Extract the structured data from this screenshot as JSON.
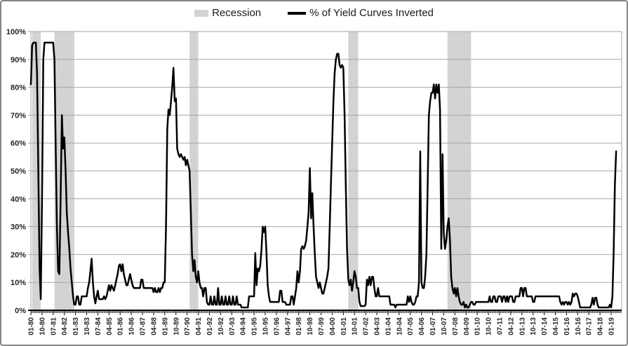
{
  "legend": {
    "recession_label": "Recession",
    "series_label": "% of Yield Curves Inverted"
  },
  "chart_data": {
    "type": "line",
    "title": "",
    "xlabel": "",
    "ylabel": "",
    "ylim": [
      0,
      100
    ],
    "y_tick_labels": [
      "0%",
      "10%",
      "20%",
      "30%",
      "40%",
      "50%",
      "60%",
      "70%",
      "80%",
      "90%",
      "100%"
    ],
    "x_start_month": "01-80",
    "x_end_month": "05-19",
    "x_major_tick_every_months": 9,
    "x_minor_tick_every_months": 1,
    "x_tick_labels": [
      "01-80",
      "10-80",
      "07-81",
      "04-82",
      "01-83",
      "10-83",
      "07-84",
      "04-85",
      "01-86",
      "10-86",
      "07-87",
      "04-88",
      "01-89",
      "10-89",
      "07-90",
      "04-91",
      "01-92",
      "10-92",
      "07-93",
      "04-94",
      "01-95",
      "10-95",
      "07-96",
      "04-97",
      "01-98",
      "10-98",
      "07-99",
      "04-00",
      "01-01",
      "10-01",
      "07-02",
      "04-03",
      "01-04",
      "10-04",
      "07-05",
      "04-06",
      "01-07",
      "10-07",
      "07-08",
      "04-09",
      "01-10",
      "10-10",
      "07-11",
      "04-12",
      "01-13",
      "10-13",
      "07-14",
      "04-15",
      "01-16",
      "10-16",
      "07-17",
      "04-18",
      "01-19"
    ],
    "grid": true,
    "legend_position": "top-center",
    "colors": {
      "series_line": "#000000",
      "recession_band": "#d3d3d3",
      "gridline": "#a6a6a6",
      "axis_text": "#262626",
      "bottom_axis": "#000000",
      "frame": "#a6a6a6"
    },
    "recession_bands": [
      {
        "start_month_index": 1,
        "end_month_index": 8
      },
      {
        "start_month_index": 19,
        "end_month_index": 35
      },
      {
        "start_month_index": 128,
        "end_month_index": 135
      },
      {
        "start_month_index": 256,
        "end_month_index": 264
      },
      {
        "start_month_index": 336,
        "end_month_index": 355
      }
    ],
    "series": [
      {
        "name": "% of Yield Curves Inverted",
        "first_month": "1980-01",
        "frequency": "monthly",
        "values": [
          81,
          95,
          96,
          96,
          96,
          85,
          50,
          15,
          4,
          40,
          90,
          96,
          96,
          96,
          96,
          96,
          96,
          96,
          96,
          90,
          60,
          30,
          14,
          13,
          40,
          70,
          58,
          62,
          50,
          35,
          28,
          22,
          15,
          10,
          5,
          2,
          2,
          5,
          5,
          2,
          2,
          5,
          5,
          5,
          5,
          5,
          8,
          10,
          14,
          18.5,
          10,
          5,
          2.5,
          5,
          7,
          4,
          4,
          4,
          4,
          5,
          4,
          5,
          7,
          9,
          7,
          9,
          8,
          7,
          9,
          11,
          13,
          16,
          16.5,
          14,
          16.5,
          13,
          11,
          9,
          9,
          11,
          13,
          11,
          9,
          8,
          8,
          8,
          8,
          8,
          8,
          11,
          11,
          8,
          8,
          8,
          8,
          8,
          8,
          8,
          8,
          6.5,
          8,
          6.5,
          6.5,
          8,
          6.5,
          8,
          8,
          10,
          10,
          30,
          65,
          72,
          70,
          75,
          80,
          87,
          75,
          76,
          58,
          56,
          55,
          56,
          55,
          54,
          55,
          52,
          54,
          52,
          50,
          35,
          20,
          14,
          18,
          12,
          10,
          14,
          10,
          8,
          8,
          5,
          8,
          8,
          3,
          2,
          2,
          5,
          2,
          2,
          5,
          2,
          2,
          8,
          2,
          2,
          5,
          2,
          2,
          5,
          2,
          2,
          5,
          2,
          2,
          5,
          2,
          2,
          5,
          2,
          2,
          2,
          1,
          1,
          1,
          1,
          1,
          1,
          5,
          5,
          5,
          5,
          5,
          20.5,
          9,
          15,
          14,
          16,
          22,
          30,
          28,
          30,
          21,
          9,
          5,
          3,
          3,
          3,
          3,
          3,
          3,
          3,
          3,
          7,
          7,
          3,
          3,
          3,
          2,
          2,
          2,
          2,
          5,
          5,
          2,
          5,
          8,
          14,
          10,
          14,
          22,
          23,
          22,
          23,
          25,
          30,
          35,
          51,
          33,
          42,
          30,
          20,
          12,
          10,
          8,
          10,
          8,
          6,
          6,
          8,
          10,
          12,
          15,
          30,
          45,
          60,
          75,
          85,
          90,
          92,
          92,
          88,
          87,
          88,
          87,
          70,
          45,
          22,
          11,
          9,
          11,
          7,
          10,
          14,
          12,
          8,
          8,
          3,
          1.5,
          1.5,
          1.5,
          1.5,
          2,
          11,
          9,
          12,
          9,
          12,
          12,
          8,
          5,
          5,
          8,
          5,
          5,
          5,
          5,
          5,
          5,
          5,
          5,
          5,
          2,
          2,
          2,
          2,
          1,
          2,
          2,
          2,
          2,
          2,
          2,
          2,
          2,
          2,
          5,
          3,
          5,
          3,
          2,
          2,
          3,
          5,
          5,
          10,
          57,
          10,
          8,
          8,
          12,
          20,
          45,
          70,
          75,
          78,
          78,
          81,
          76,
          81,
          78,
          81,
          72,
          22,
          56,
          28,
          22,
          25,
          30,
          33,
          25,
          12,
          8,
          6,
          8,
          5,
          8,
          5,
          3,
          2,
          2,
          3,
          1,
          2,
          1,
          1,
          2,
          3,
          3,
          2,
          2,
          3,
          3,
          3,
          3,
          3,
          3,
          3,
          3,
          3,
          3,
          3,
          5,
          3,
          3,
          5,
          5,
          3,
          3,
          5,
          5,
          5,
          3,
          5,
          5,
          3,
          5,
          3,
          5,
          5,
          5,
          3,
          3,
          5,
          5,
          5,
          5,
          8,
          8,
          5,
          8,
          8,
          5,
          5,
          5,
          5,
          5,
          3,
          3,
          5,
          5,
          5,
          5,
          5,
          5,
          5,
          5,
          5,
          5,
          5,
          5,
          5,
          5,
          5,
          5,
          5,
          5,
          5,
          5,
          3,
          2,
          3,
          2,
          3,
          3,
          2,
          3,
          2,
          3,
          6,
          5,
          6,
          6,
          5,
          3,
          1,
          1,
          1,
          1,
          1,
          1,
          1,
          1,
          1,
          2,
          4.5,
          2,
          4.5,
          4.5,
          2,
          1,
          1,
          1,
          1,
          1,
          1,
          1,
          1,
          1,
          2,
          1,
          5,
          20,
          45,
          57
        ]
      }
    ]
  }
}
